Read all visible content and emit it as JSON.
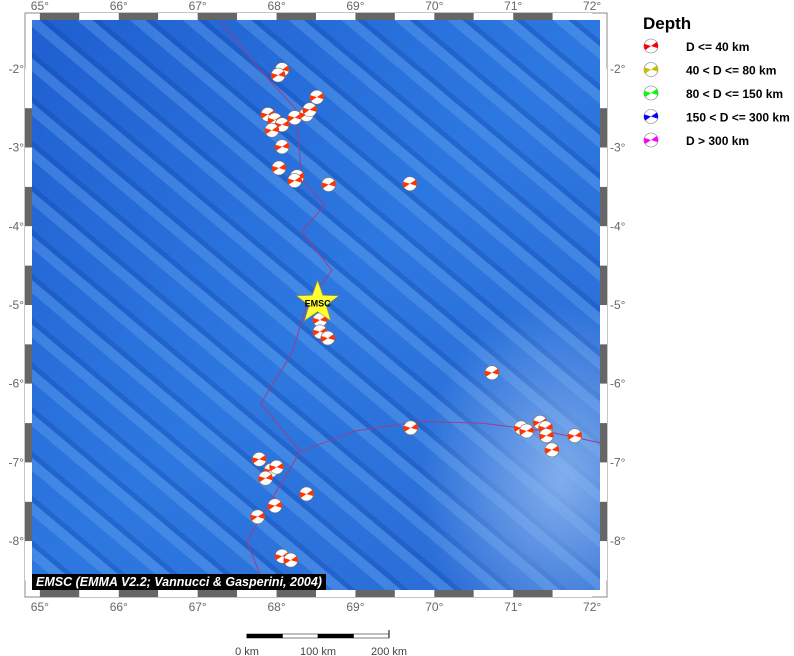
{
  "map": {
    "lon_range": [
      64.9,
      72.1
    ],
    "lat_range": [
      -8.62,
      -1.38
    ],
    "lon_ticks": [
      65,
      66,
      67,
      68,
      69,
      70,
      71,
      72
    ],
    "lat_ticks": [
      -2,
      -3,
      -4,
      -5,
      -6,
      -7,
      -8
    ],
    "tick_suffix": "°",
    "ocean_color": "#2a6fd8",
    "boundary_color": "#9b3f8a",
    "plate_boundary": [
      [
        67.3,
        -1.4
      ],
      [
        67.77,
        -1.99
      ],
      [
        68.25,
        -2.52
      ],
      [
        68.32,
        -3.41
      ],
      [
        68.61,
        -3.73
      ],
      [
        68.32,
        -4.07
      ],
      [
        68.7,
        -4.56
      ],
      [
        68.38,
        -5.0
      ],
      [
        68.2,
        -5.6
      ],
      [
        67.8,
        -6.25
      ],
      [
        68.3,
        -6.86
      ],
      [
        67.62,
        -8.0
      ],
      [
        67.88,
        -8.64
      ]
    ],
    "boundary_branch": [
      [
        68.3,
        -6.86
      ],
      [
        69.0,
        -6.6
      ],
      [
        69.8,
        -6.48
      ],
      [
        70.6,
        -6.5
      ],
      [
        71.4,
        -6.6
      ],
      [
        72.1,
        -6.75
      ]
    ],
    "star": {
      "label": "EMSC",
      "lon": 68.52,
      "lat": -4.97,
      "color": "#ffff33"
    }
  },
  "events": [
    [
      68.07,
      -2.01
    ],
    [
      68.02,
      -2.08
    ],
    [
      68.51,
      -2.36
    ],
    [
      67.89,
      -2.58
    ],
    [
      67.98,
      -2.65
    ],
    [
      68.07,
      -2.71
    ],
    [
      67.94,
      -2.78
    ],
    [
      68.23,
      -2.62
    ],
    [
      68.38,
      -2.58
    ],
    [
      68.42,
      -2.52
    ],
    [
      68.07,
      -2.99
    ],
    [
      68.03,
      -3.26
    ],
    [
      68.26,
      -3.37
    ],
    [
      68.23,
      -3.42
    ],
    [
      68.66,
      -3.47
    ],
    [
      69.69,
      -3.46
    ],
    [
      68.55,
      -5.19
    ],
    [
      68.55,
      -5.34
    ],
    [
      68.65,
      -5.42
    ],
    [
      70.73,
      -5.86
    ],
    [
      69.7,
      -6.56
    ],
    [
      71.1,
      -6.56
    ],
    [
      71.17,
      -6.6
    ],
    [
      71.34,
      -6.49
    ],
    [
      71.41,
      -6.56
    ],
    [
      71.42,
      -6.66
    ],
    [
      71.49,
      -6.84
    ],
    [
      71.78,
      -6.66
    ],
    [
      67.78,
      -6.96
    ],
    [
      67.93,
      -7.1
    ],
    [
      68.0,
      -7.06
    ],
    [
      67.86,
      -7.2
    ],
    [
      68.38,
      -7.4
    ],
    [
      67.98,
      -7.55
    ],
    [
      67.76,
      -7.69
    ],
    [
      68.07,
      -8.19
    ],
    [
      68.18,
      -8.24
    ]
  ],
  "legend": {
    "title": "Depth",
    "items": [
      {
        "label": "D <= 40 km",
        "color": "#ff0000"
      },
      {
        "label": "40 < D <= 80 km",
        "color": "#c8c000"
      },
      {
        "label": "80 < D <= 150 km",
        "color": "#00ff00"
      },
      {
        "label": "150 < D <= 300 km",
        "color": "#0000ff"
      },
      {
        "label": "D > 300 km",
        "color": "#ff00ff"
      }
    ]
  },
  "event_color": "#ff3300",
  "credit": "EMSC (EMMA V2.2; Vannucci & Gasperini, 2004)",
  "scale_bar": {
    "labels": [
      "0 km",
      "100 km",
      "200 km"
    ]
  }
}
